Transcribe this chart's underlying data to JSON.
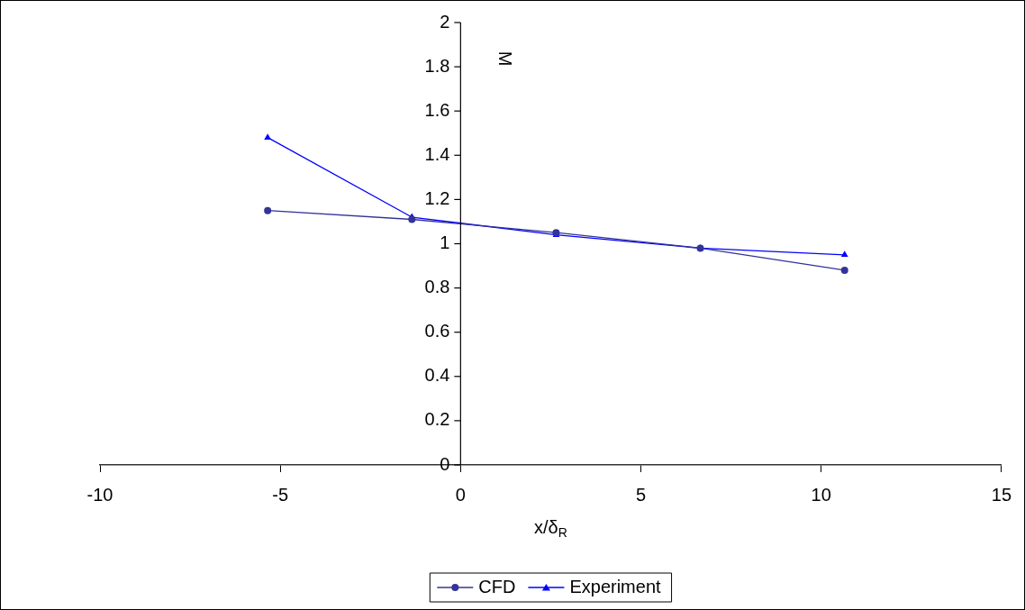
{
  "chart_data": {
    "type": "line",
    "xlabel": "x/δ$_{R}$",
    "ylabel": "M",
    "xlim": [
      -10,
      15
    ],
    "xticks": [
      -10,
      -5,
      0,
      5,
      10,
      15
    ],
    "ylim": [
      0,
      2
    ],
    "yticks": [
      0,
      0.2,
      0.4,
      0.6,
      0.8,
      1,
      1.2,
      1.4,
      1.6,
      1.8,
      2
    ],
    "grid": false,
    "legend": "bottom",
    "line_style": "solid",
    "series": [
      {
        "name": "CFD",
        "color": "#333399",
        "marker": "circle",
        "x": [
          -5.35,
          -1.35,
          2.65,
          6.65,
          10.65
        ],
        "values": [
          1.15,
          1.11,
          1.05,
          0.98,
          0.88
        ]
      },
      {
        "name": "Experiment",
        "color": "#0000ff",
        "marker": "triangle",
        "x": [
          -5.35,
          -1.35,
          2.65,
          6.65,
          10.65
        ],
        "values": [
          1.48,
          1.12,
          1.04,
          0.98,
          0.95
        ]
      }
    ]
  }
}
